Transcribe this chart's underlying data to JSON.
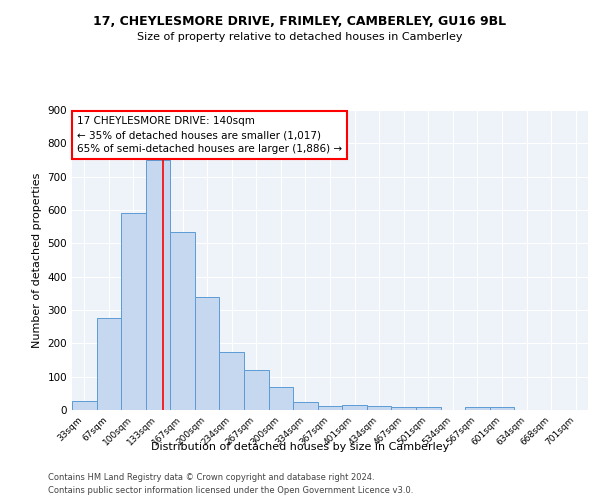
{
  "title": "17, CHEYLESMORE DRIVE, FRIMLEY, CAMBERLEY, GU16 9BL",
  "subtitle": "Size of property relative to detached houses in Camberley",
  "xlabel": "Distribution of detached houses by size in Camberley",
  "ylabel": "Number of detached properties",
  "bar_color": "#c5d8f0",
  "bar_edge_color": "#5b9bd5",
  "bar_categories": [
    "33sqm",
    "67sqm",
    "100sqm",
    "133sqm",
    "167sqm",
    "200sqm",
    "234sqm",
    "267sqm",
    "300sqm",
    "334sqm",
    "367sqm",
    "401sqm",
    "434sqm",
    "467sqm",
    "501sqm",
    "534sqm",
    "567sqm",
    "601sqm",
    "634sqm",
    "668sqm",
    "701sqm"
  ],
  "bar_values": [
    27,
    275,
    590,
    750,
    535,
    340,
    175,
    120,
    70,
    25,
    13,
    15,
    12,
    10,
    10,
    0,
    8,
    10,
    0,
    0,
    0
  ],
  "annotation_line1": "17 CHEYLESMORE DRIVE: 140sqm",
  "annotation_line2": "← 35% of detached houses are smaller (1,017)",
  "annotation_line3": "65% of semi-detached houses are larger (1,886) →",
  "annotation_box_color": "white",
  "annotation_box_edge_color": "red",
  "ylim": [
    0,
    900
  ],
  "yticks": [
    0,
    100,
    200,
    300,
    400,
    500,
    600,
    700,
    800,
    900
  ],
  "bg_color": "#eef2f9",
  "footer_line1": "Contains HM Land Registry data © Crown copyright and database right 2024.",
  "footer_line2": "Contains public sector information licensed under the Open Government Licence v3.0."
}
